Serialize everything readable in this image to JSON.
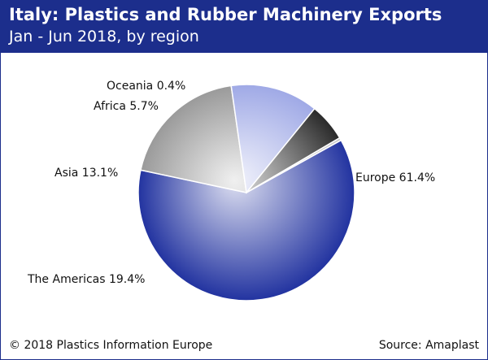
{
  "colors": {
    "header_bg": "#1c2e8c"
  },
  "footer": {
    "copyright": "© 2018 Plastics Information Europe",
    "source": "Source: Amaplast"
  },
  "chart_data": {
    "type": "pie",
    "title": "Italy: Plastics and Rubber Machinery Exports",
    "subtitle": "Jan - Jun 2018, by region",
    "slices": [
      {
        "name": "Europe",
        "value": 61.4,
        "label": "Europe 61.4%",
        "color": "#2233a0"
      },
      {
        "name": "The Americas",
        "value": 19.4,
        "label": "The Americas 19.4%",
        "color": "#9a9a9a"
      },
      {
        "name": "Asia",
        "value": 13.1,
        "label": "Asia 13.1%",
        "color": "#9fa9e6"
      },
      {
        "name": "Africa",
        "value": 5.7,
        "label": "Africa 5.7%",
        "color": "#2a2a2a"
      },
      {
        "name": "Oceania",
        "value": 0.4,
        "label": "Oceania 0.4%",
        "color": "#c8c8c8"
      }
    ]
  }
}
